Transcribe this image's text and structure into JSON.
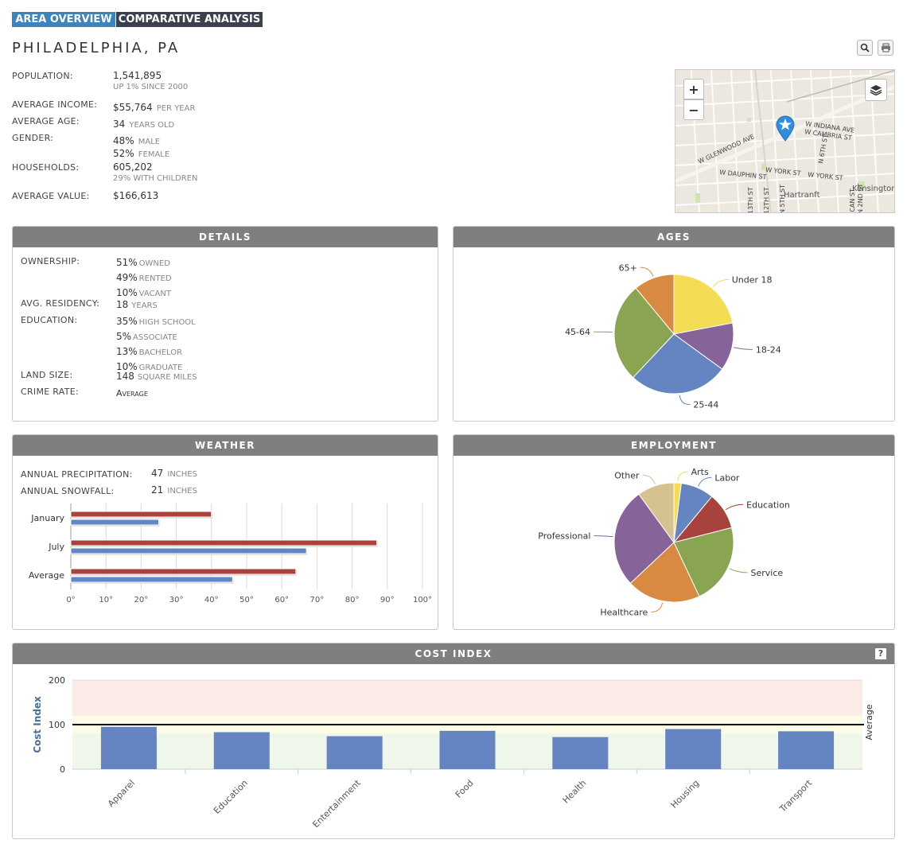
{
  "tabs": [
    {
      "label": "Area Overview",
      "active": true
    },
    {
      "label": "Comparative Analysis",
      "active": false
    }
  ],
  "city": "PHILADELPHIA, PA",
  "overview": [
    {
      "label": "Population:",
      "value": "1,541,895",
      "sub": "UP 1% SINCE 2000"
    },
    {
      "label": "Average Income:",
      "value": "$55,764",
      "unit": "PER YEAR"
    },
    {
      "label": "Average Age:",
      "value": "34",
      "unit": "YEARS OLD"
    },
    {
      "label": "Gender:",
      "value": "48%",
      "unit": "MALE",
      "line2_value": "52%",
      "line2_unit": "FEMALE"
    },
    {
      "label": "Households:",
      "value": "605,202",
      "sub": "29% WITH CHILDREN"
    },
    {
      "label": "Average Value:",
      "value": "$166,613"
    }
  ],
  "map": {
    "streets": [
      "W INDIANA AVE",
      "W CAMBRIA ST",
      "W GLENWOOD AVE",
      "N 6TH ST",
      "W DAUPHIN ST",
      "W YORK ST",
      "W YORK ST",
      "Hartranft",
      "Kensington",
      "13TH ST",
      "12TH ST",
      "N 5TH ST",
      "N 2ND ST",
      "ICAN ST"
    ],
    "zoom_in": "+",
    "zoom_out": "−"
  },
  "details": {
    "title": "Details",
    "rows": [
      {
        "label": "Ownership:",
        "lines": [
          [
            "51%",
            "OWNED"
          ],
          [
            "49%",
            "RENTED"
          ],
          [
            "10%",
            "VACANT"
          ]
        ]
      },
      {
        "label": "Avg. Residency:",
        "lines": [
          [
            "18",
            "YEARS"
          ]
        ]
      },
      {
        "label": "Education:",
        "lines": [
          [
            "35%",
            "HIGH SCHOOL"
          ],
          [
            "5%",
            "ASSOCIATE"
          ],
          [
            "13%",
            "BACHELOR"
          ],
          [
            "10%",
            "GRADUATE"
          ]
        ]
      },
      {
        "label": "Land Size:",
        "lines": [
          [
            "148",
            "SQUARE MILES"
          ]
        ]
      },
      {
        "label": "Crime Rate:",
        "lines": [
          [
            "Average",
            ""
          ]
        ]
      }
    ]
  },
  "weather": {
    "title": "Weather",
    "precip_label": "Annual Precipitation:",
    "precip_value": "47",
    "precip_unit": "INCHES",
    "snow_label": "Annual Snowfall:",
    "snow_value": "21",
    "snow_unit": "INCHES"
  },
  "chart_data": [
    {
      "type": "bar",
      "title": "",
      "orientation": "horizontal",
      "categories": [
        "January",
        "July",
        "Average"
      ],
      "series": [
        {
          "color": "#a8423c",
          "values": [
            40,
            87,
            64
          ]
        },
        {
          "color": "#6186c4",
          "values": [
            25,
            67,
            46
          ]
        }
      ],
      "xlim": [
        0,
        100
      ],
      "tick_labels": [
        "0°",
        "10°",
        "20°",
        "30°",
        "40°",
        "50°",
        "60°",
        "70°",
        "80°",
        "90°",
        "100°"
      ]
    },
    {
      "type": "pie",
      "title": "Ages",
      "slices": [
        {
          "label": "Under 18",
          "value": 22,
          "color": "#f4dd55"
        },
        {
          "label": "18-24",
          "value": 13,
          "color": "#86649a"
        },
        {
          "label": "25-44",
          "value": 27,
          "color": "#6485c2"
        },
        {
          "label": "45-64",
          "value": 27,
          "color": "#8aa552"
        },
        {
          "label": "65+",
          "value": 11,
          "color": "#d88a42"
        }
      ]
    },
    {
      "type": "pie",
      "title": "Employment",
      "slices": [
        {
          "label": "Arts",
          "value": 2,
          "color": "#f4dd55"
        },
        {
          "label": "Labor",
          "value": 9,
          "color": "#6485c2"
        },
        {
          "label": "Education",
          "value": 10,
          "color": "#a8423c"
        },
        {
          "label": "Service",
          "value": 22,
          "color": "#8aa552"
        },
        {
          "label": "Healthcare",
          "value": 20,
          "color": "#d88a42"
        },
        {
          "label": "Professional",
          "value": 27,
          "color": "#86649a"
        },
        {
          "label": "Other",
          "value": 10,
          "color": "#d4c28f"
        }
      ]
    },
    {
      "type": "bar",
      "title": "Cost Index",
      "ylabel": "Cost Index",
      "right_label": "Average",
      "categories": [
        "Apparel",
        "Education",
        "Entertainment",
        "Food",
        "Health",
        "Housing",
        "Transport"
      ],
      "values": [
        95,
        83,
        74,
        86,
        72,
        90,
        85
      ],
      "ylim": [
        0,
        200
      ],
      "yticks": [
        "0",
        "100",
        "200"
      ],
      "average_line": 100,
      "bar_color": "#6485c2"
    }
  ],
  "help_label": "?"
}
